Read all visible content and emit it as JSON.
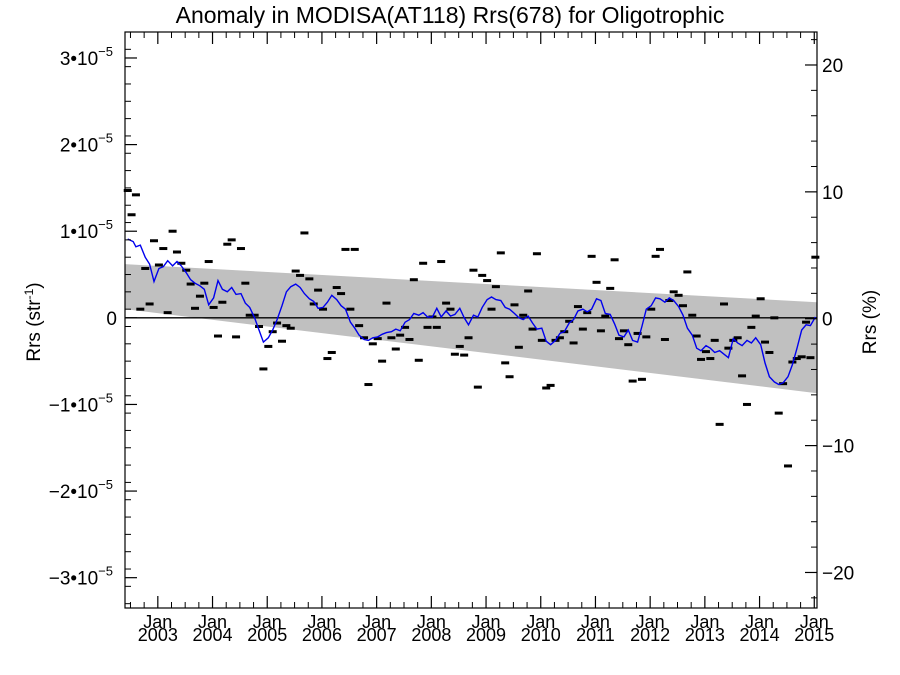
{
  "chart_data": {
    "type": "scatter",
    "title": "Anomaly in MODISA(AT118) Rrs(678) for Oligotrophic",
    "ylabel_left": "Rrs (str",
    "ylabel_left_sup": "-1",
    "ylabel_left_close": ")",
    "ylabel_right": "Rrs (%)",
    "xlim": [
      2002.4,
      2015.05
    ],
    "ylim_left": [
      -3.35e-05,
      3.3e-05
    ],
    "ylim_right": [
      -22.8,
      22.6
    ],
    "y_ticks_left": [
      {
        "value": 3e-05,
        "mantissa": "3•10",
        "exp": "−5"
      },
      {
        "value": 2e-05,
        "mantissa": "2•10",
        "exp": "−5"
      },
      {
        "value": 1e-05,
        "mantissa": "1•10",
        "exp": "−5"
      },
      {
        "value": 0,
        "mantissa": "0",
        "exp": ""
      },
      {
        "value": -1e-05,
        "mantissa": "−1•10",
        "exp": "−5"
      },
      {
        "value": -2e-05,
        "mantissa": "−2•10",
        "exp": "−5"
      },
      {
        "value": -3e-05,
        "mantissa": "−3•10",
        "exp": "−5"
      }
    ],
    "y_ticks_right": [
      {
        "value": 20,
        "label": "20"
      },
      {
        "value": 10,
        "label": "10"
      },
      {
        "value": 0,
        "label": "0"
      },
      {
        "value": -10,
        "label": "−10"
      },
      {
        "value": -20,
        "label": "−20"
      }
    ],
    "x_ticks": [
      {
        "value": 2003,
        "month": "Jan",
        "year": "2003"
      },
      {
        "value": 2004,
        "month": "Jan",
        "year": "2004"
      },
      {
        "value": 2005,
        "month": "Jan",
        "year": "2005"
      },
      {
        "value": 2006,
        "month": "Jan",
        "year": "2006"
      },
      {
        "value": 2007,
        "month": "Jan",
        "year": "2007"
      },
      {
        "value": 2008,
        "month": "Jan",
        "year": "2008"
      },
      {
        "value": 2009,
        "month": "Jan",
        "year": "2009"
      },
      {
        "value": 2010,
        "month": "Jan",
        "year": "2010"
      },
      {
        "value": 2011,
        "month": "Jan",
        "year": "2011"
      },
      {
        "value": 2012,
        "month": "Jan",
        "year": "2012"
      },
      {
        "value": 2013,
        "month": "Jan",
        "year": "2013"
      },
      {
        "value": 2014,
        "month": "Jan",
        "year": "2014"
      },
      {
        "value": 2015,
        "month": "Jan",
        "year": "2015"
      }
    ],
    "trend_band": {
      "x": [
        2002.4,
        2015.05
      ],
      "upper": [
        6.2e-06,
        1.8e-06
      ],
      "lower": [
        1e-06,
        -8.7e-06
      ],
      "color": "#c0c0c0"
    },
    "zero_line": 0,
    "points_color": "#000000",
    "line_color": "#0000ee",
    "points": [
      [
        2002.45,
        1.47e-05
      ],
      [
        2002.52,
        1.19e-05
      ],
      [
        2002.6,
        1.42e-05
      ],
      [
        2002.68,
        1e-06
      ],
      [
        2002.77,
        5.7e-06
      ],
      [
        2002.85,
        1.6e-06
      ],
      [
        2002.93,
        8.9e-06
      ],
      [
        2003.02,
        6.1e-06
      ],
      [
        2003.1,
        8e-06
      ],
      [
        2003.18,
        6e-07
      ],
      [
        2003.27,
        1e-05
      ],
      [
        2003.35,
        7.6e-06
      ],
      [
        2003.43,
        6.3e-06
      ],
      [
        2003.52,
        5.5e-06
      ],
      [
        2003.6,
        3.9e-06
      ],
      [
        2003.68,
        1.1e-06
      ],
      [
        2003.77,
        2.5e-06
      ],
      [
        2003.85,
        4e-06
      ],
      [
        2003.93,
        6.5e-06
      ],
      [
        2004.02,
        1.2e-06
      ],
      [
        2004.1,
        -2.1e-06
      ],
      [
        2004.18,
        1.8e-06
      ],
      [
        2004.27,
        8.5e-06
      ],
      [
        2004.35,
        9e-06
      ],
      [
        2004.43,
        -2.2e-06
      ],
      [
        2004.52,
        8e-06
      ],
      [
        2004.6,
        4e-06
      ],
      [
        2004.68,
        3e-07
      ],
      [
        2004.77,
        3e-07
      ],
      [
        2004.85,
        -1e-06
      ],
      [
        2004.93,
        -5.9e-06
      ],
      [
        2005.02,
        -3.3e-06
      ],
      [
        2005.1,
        -1.6e-06
      ],
      [
        2005.18,
        -6e-07
      ],
      [
        2005.27,
        -2.7e-06
      ],
      [
        2005.35,
        -9e-07
      ],
      [
        2005.43,
        -1.2e-06
      ],
      [
        2005.52,
        5.4e-06
      ],
      [
        2005.6,
        4.9e-06
      ],
      [
        2005.68,
        9.8e-06
      ],
      [
        2005.77,
        4.5e-06
      ],
      [
        2005.85,
        1.6e-06
      ],
      [
        2005.93,
        3.2e-06
      ],
      [
        2006.02,
        1e-06
      ],
      [
        2006.1,
        -4.7e-06
      ],
      [
        2006.18,
        -4e-06
      ],
      [
        2006.27,
        3.5e-06
      ],
      [
        2006.35,
        2.8e-06
      ],
      [
        2006.43,
        7.9e-06
      ],
      [
        2006.52,
        1e-06
      ],
      [
        2006.6,
        7.9e-06
      ],
      [
        2006.68,
        -9e-07
      ],
      [
        2006.77,
        -2.3e-06
      ],
      [
        2006.85,
        -7.7e-06
      ],
      [
        2006.93,
        -3e-06
      ],
      [
        2007.02,
        -2.4e-06
      ],
      [
        2007.1,
        -5e-06
      ],
      [
        2007.18,
        1.7e-06
      ],
      [
        2007.27,
        -2.3e-06
      ],
      [
        2007.35,
        -3.6e-06
      ],
      [
        2007.43,
        -2e-06
      ],
      [
        2007.52,
        -1.1e-06
      ],
      [
        2007.6,
        -2.5e-06
      ],
      [
        2007.68,
        4.4e-06
      ],
      [
        2007.77,
        -4.9e-06
      ],
      [
        2007.85,
        6.3e-06
      ],
      [
        2007.93,
        -1.1e-06
      ],
      [
        2008.02,
        1e-07
      ],
      [
        2008.1,
        -1.1e-06
      ],
      [
        2008.18,
        6.5e-06
      ],
      [
        2008.27,
        1.7e-06
      ],
      [
        2008.35,
        1e-06
      ],
      [
        2008.43,
        -4.2e-06
      ],
      [
        2008.52,
        -3.3e-06
      ],
      [
        2008.6,
        -4.3e-06
      ],
      [
        2008.68,
        -2.3e-06
      ],
      [
        2008.77,
        5.5e-06
      ],
      [
        2008.85,
        -8e-06
      ],
      [
        2008.93,
        4.9e-06
      ],
      [
        2009.02,
        4.3e-06
      ],
      [
        2009.1,
        1e-06
      ],
      [
        2009.18,
        3.6e-06
      ],
      [
        2009.27,
        7.5e-06
      ],
      [
        2009.35,
        -5.2e-06
      ],
      [
        2009.43,
        -6.8e-06
      ],
      [
        2009.52,
        1.5e-06
      ],
      [
        2009.6,
        -3.4e-06
      ],
      [
        2009.68,
        3e-07
      ],
      [
        2009.77,
        3.1e-06
      ],
      [
        2009.85,
        -1.3e-06
      ],
      [
        2009.93,
        7.4e-06
      ],
      [
        2010.02,
        -2.6e-06
      ],
      [
        2010.1,
        -8.1e-06
      ],
      [
        2010.18,
        -7.8e-06
      ],
      [
        2010.27,
        -2.6e-06
      ],
      [
        2010.35,
        -2.3e-06
      ],
      [
        2010.43,
        -1.6e-06
      ],
      [
        2010.52,
        -4e-07
      ],
      [
        2010.6,
        -2.9e-06
      ],
      [
        2010.68,
        1.3e-06
      ],
      [
        2010.77,
        -1.3e-06
      ],
      [
        2010.85,
        6e-07
      ],
      [
        2010.93,
        7.1e-06
      ],
      [
        2011.02,
        4.1e-06
      ],
      [
        2011.1,
        -1.5e-06
      ],
      [
        2011.18,
        2e-07
      ],
      [
        2011.27,
        3.4e-06
      ],
      [
        2011.35,
        6.7e-06
      ],
      [
        2011.43,
        -2.4e-06
      ],
      [
        2011.52,
        -1.5e-06
      ],
      [
        2011.6,
        -3.1e-06
      ],
      [
        2011.68,
        -7.3e-06
      ],
      [
        2011.77,
        -1.8e-06
      ],
      [
        2011.85,
        -7.1e-06
      ],
      [
        2011.93,
        -2.2e-06
      ],
      [
        2012.02,
        1e-06
      ],
      [
        2012.1,
        7.1e-06
      ],
      [
        2012.18,
        7.9e-06
      ],
      [
        2012.27,
        -2.5e-06
      ],
      [
        2012.35,
        2e-06
      ],
      [
        2012.43,
        3e-06
      ],
      [
        2012.52,
        2.6e-06
      ],
      [
        2012.6,
        1.4e-06
      ],
      [
        2012.68,
        5.3e-06
      ],
      [
        2012.77,
        3e-07
      ],
      [
        2012.85,
        -2.1e-06
      ],
      [
        2012.93,
        -4.8e-06
      ],
      [
        2013.02,
        -3.9e-06
      ],
      [
        2013.1,
        -4.7e-06
      ],
      [
        2013.18,
        -2.6e-06
      ],
      [
        2013.27,
        -1.23e-05
      ],
      [
        2013.35,
        1.6e-06
      ],
      [
        2013.43,
        -3.5e-06
      ],
      [
        2013.52,
        -2.6e-06
      ],
      [
        2013.6,
        -2.3e-06
      ],
      [
        2013.68,
        -6.7e-06
      ],
      [
        2013.77,
        -1e-05
      ],
      [
        2013.85,
        -1.1e-06
      ],
      [
        2013.93,
        2e-07
      ],
      [
        2014.02,
        2.2e-06
      ],
      [
        2014.1,
        -2.8e-06
      ],
      [
        2014.18,
        -4e-06
      ],
      [
        2014.27,
        0.0
      ],
      [
        2014.35,
        -1.1e-05
      ],
      [
        2014.43,
        -7.6e-06
      ],
      [
        2014.52,
        -1.71e-05
      ],
      [
        2014.6,
        -5.1e-06
      ],
      [
        2014.68,
        -4.7e-06
      ],
      [
        2014.77,
        -4.5e-06
      ],
      [
        2014.85,
        -5e-07
      ],
      [
        2014.93,
        -4.6e-06
      ],
      [
        2015.02,
        7e-06
      ]
    ],
    "line": [
      [
        2002.45,
        9.1e-06
      ],
      [
        2002.55,
        8.8e-06
      ],
      [
        2002.6,
        8.2e-06
      ],
      [
        2002.68,
        8.4e-06
      ],
      [
        2002.77,
        7e-06
      ],
      [
        2002.85,
        6.2e-06
      ],
      [
        2002.93,
        4.2e-06
      ],
      [
        2003.02,
        5.7e-06
      ],
      [
        2003.1,
        5.9e-06
      ],
      [
        2003.18,
        6.6e-06
      ],
      [
        2003.27,
        6e-06
      ],
      [
        2003.35,
        6.5e-06
      ],
      [
        2003.43,
        6e-06
      ],
      [
        2003.52,
        5.2e-06
      ],
      [
        2003.6,
        4.4e-06
      ],
      [
        2003.68,
        4e-06
      ],
      [
        2003.77,
        3.7e-06
      ],
      [
        2003.85,
        3.3e-06
      ],
      [
        2003.93,
        1.5e-06
      ],
      [
        2004.02,
        2.3e-06
      ],
      [
        2004.1,
        4.3e-06
      ],
      [
        2004.18,
        3.3e-06
      ],
      [
        2004.27,
        3e-06
      ],
      [
        2004.35,
        3.5e-06
      ],
      [
        2004.43,
        2.7e-06
      ],
      [
        2004.52,
        2.8e-06
      ],
      [
        2004.6,
        1.7e-06
      ],
      [
        2004.68,
        1.2e-06
      ],
      [
        2004.77,
        0.0
      ],
      [
        2004.85,
        -1.4e-06
      ],
      [
        2004.93,
        -2.8e-06
      ],
      [
        2005.02,
        -2.3e-06
      ],
      [
        2005.1,
        -1.4e-06
      ],
      [
        2005.18,
        -2e-07
      ],
      [
        2005.27,
        1.4e-06
      ],
      [
        2005.35,
        3e-06
      ],
      [
        2005.43,
        3.6e-06
      ],
      [
        2005.52,
        3.9e-06
      ],
      [
        2005.6,
        3.5e-06
      ],
      [
        2005.68,
        2.8e-06
      ],
      [
        2005.77,
        2.2e-06
      ],
      [
        2005.85,
        1.9e-06
      ],
      [
        2005.93,
        1.1e-06
      ],
      [
        2006.02,
        1.2e-06
      ],
      [
        2006.1,
        1.8e-06
      ],
      [
        2006.18,
        2.6e-06
      ],
      [
        2006.27,
        2.1e-06
      ],
      [
        2006.35,
        1.4e-06
      ],
      [
        2006.43,
        1e-06
      ],
      [
        2006.52,
        -5e-07
      ],
      [
        2006.6,
        -1.2e-06
      ],
      [
        2006.68,
        -2e-06
      ],
      [
        2006.77,
        -2.5e-06
      ],
      [
        2006.85,
        -2.6e-06
      ],
      [
        2006.93,
        -2.3e-06
      ],
      [
        2007.02,
        -2.2e-06
      ],
      [
        2007.1,
        -1.9e-06
      ],
      [
        2007.18,
        -1.7e-06
      ],
      [
        2007.27,
        -1.6e-06
      ],
      [
        2007.35,
        -1.3e-06
      ],
      [
        2007.43,
        -1.5e-06
      ],
      [
        2007.52,
        -5e-07
      ],
      [
        2007.6,
        -2e-07
      ],
      [
        2007.68,
        5e-07
      ],
      [
        2007.77,
        3e-07
      ],
      [
        2007.85,
        6e-07
      ],
      [
        2007.93,
        1e-07
      ],
      [
        2008.02,
        1e-07
      ],
      [
        2008.1,
        1.1e-06
      ],
      [
        2008.18,
        1e-07
      ],
      [
        2008.27,
        8e-07
      ],
      [
        2008.35,
        2e-07
      ],
      [
        2008.43,
        4e-07
      ],
      [
        2008.52,
        1.1e-06
      ],
      [
        2008.6,
        0.0
      ],
      [
        2008.68,
        -8e-07
      ],
      [
        2008.77,
        3e-07
      ],
      [
        2008.85,
        1e-07
      ],
      [
        2008.93,
        1.2e-06
      ],
      [
        2009.02,
        2.1e-06
      ],
      [
        2009.1,
        2.4e-06
      ],
      [
        2009.18,
        2.1e-06
      ],
      [
        2009.27,
        2e-06
      ],
      [
        2009.35,
        1.2e-06
      ],
      [
        2009.43,
        1e-06
      ],
      [
        2009.52,
        5e-07
      ],
      [
        2009.6,
        0.0
      ],
      [
        2009.68,
        -2e-07
      ],
      [
        2009.77,
        2e-07
      ],
      [
        2009.85,
        -6e-07
      ],
      [
        2009.93,
        -1.3e-06
      ],
      [
        2010.02,
        -1.2e-06
      ],
      [
        2010.1,
        -2.7e-06
      ],
      [
        2010.18,
        -3.1e-06
      ],
      [
        2010.27,
        -2.6e-06
      ],
      [
        2010.35,
        -1.8e-06
      ],
      [
        2010.43,
        -1.6e-06
      ],
      [
        2010.52,
        -6e-07
      ],
      [
        2010.6,
        -2e-07
      ],
      [
        2010.68,
        8e-07
      ],
      [
        2010.77,
        1e-06
      ],
      [
        2010.85,
        7e-07
      ],
      [
        2010.93,
        1e-06
      ],
      [
        2011.02,
        2.2e-06
      ],
      [
        2011.1,
        2e-06
      ],
      [
        2011.18,
        5e-07
      ],
      [
        2011.27,
        4e-07
      ],
      [
        2011.35,
        -7e-07
      ],
      [
        2011.43,
        -2e-06
      ],
      [
        2011.52,
        -2.2e-06
      ],
      [
        2011.6,
        -1.4e-06
      ],
      [
        2011.68,
        -2.6e-06
      ],
      [
        2011.77,
        -2.8e-06
      ],
      [
        2011.85,
        -1e-06
      ],
      [
        2011.93,
        1e-06
      ],
      [
        2012.02,
        1.4e-06
      ],
      [
        2012.1,
        2.3e-06
      ],
      [
        2012.18,
        2.2e-06
      ],
      [
        2012.27,
        1.8e-06
      ],
      [
        2012.35,
        2.3e-06
      ],
      [
        2012.43,
        2e-06
      ],
      [
        2012.52,
        1.3e-06
      ],
      [
        2012.6,
        3e-07
      ],
      [
        2012.68,
        -1.2e-06
      ],
      [
        2012.77,
        -2e-06
      ],
      [
        2012.85,
        -3.5e-06
      ],
      [
        2012.93,
        -3.8e-06
      ],
      [
        2013.02,
        -3.2e-06
      ],
      [
        2013.1,
        -3.5e-06
      ],
      [
        2013.18,
        -4e-06
      ],
      [
        2013.27,
        -3.8e-06
      ],
      [
        2013.35,
        -4.2e-06
      ],
      [
        2013.43,
        -4.6e-06
      ],
      [
        2013.52,
        -2.4e-06
      ],
      [
        2013.6,
        -2.9e-06
      ],
      [
        2013.68,
        -3.2e-06
      ],
      [
        2013.77,
        -2.6e-06
      ],
      [
        2013.85,
        -2.9e-06
      ],
      [
        2013.93,
        -2.3e-06
      ],
      [
        2014.02,
        -3.1e-06
      ],
      [
        2014.1,
        -5.2e-06
      ],
      [
        2014.18,
        -6.8e-06
      ],
      [
        2014.27,
        -7.4e-06
      ],
      [
        2014.35,
        -7.7e-06
      ],
      [
        2014.43,
        -7.5e-06
      ],
      [
        2014.52,
        -6.8e-06
      ],
      [
        2014.6,
        -5.4e-06
      ],
      [
        2014.68,
        -3.6e-06
      ],
      [
        2014.77,
        -1.4e-06
      ],
      [
        2014.85,
        -8e-07
      ],
      [
        2014.93,
        -9e-07
      ],
      [
        2015.02,
        1e-07
      ]
    ]
  }
}
